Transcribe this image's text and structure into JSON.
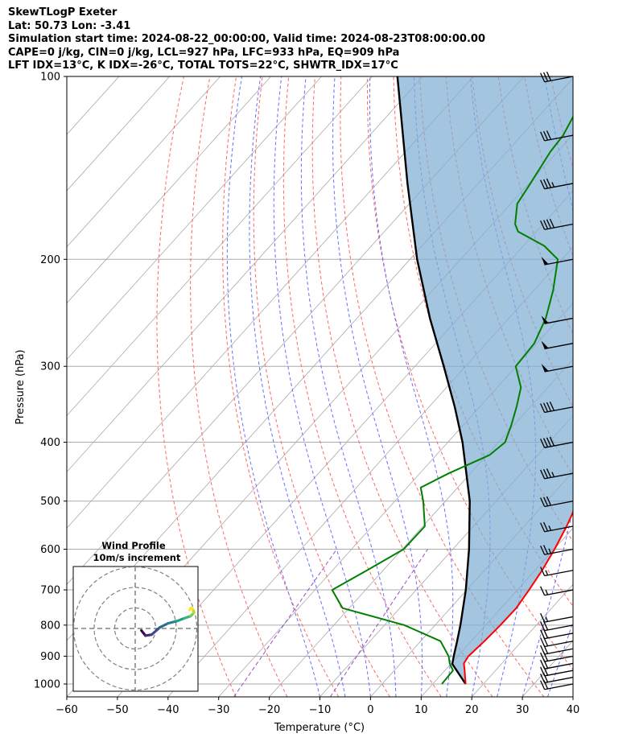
{
  "header": {
    "line1": "SkewTLogP Exeter",
    "line2": "Lat: 50.73   Lon: -3.41",
    "line3": "Simulation start time: 2024-08-22_00:00:00, Valid time: 2024-08-23T08:00:00.00",
    "line4": "CAPE=0 j/kg, CIN=0 j/kg, LCL=927 hPa, LFC=933 hPa, EQ=909 hPa",
    "line5": "LFT IDX=13°C, K IDX=-26°C, TOTAL TOTS=22°C, SHWTR_IDX=17°C"
  },
  "chart_data": {
    "type": "line",
    "xlabel": "Temperature (°C)",
    "ylabel": "Pressure (hPa)",
    "xlim": [
      -60,
      40
    ],
    "ylim": [
      1050,
      100
    ],
    "y_scale": "log",
    "x_ticks": [
      -60,
      -50,
      -40,
      -30,
      -20,
      -10,
      0,
      10,
      20,
      30,
      40
    ],
    "x_tick_labels": [
      "−60",
      "−50",
      "−40",
      "−30",
      "−20",
      "−10",
      "0",
      "10",
      "20",
      "30",
      "40"
    ],
    "y_ticks": [
      1000,
      900,
      800,
      700,
      600,
      500,
      400,
      300,
      200,
      100
    ],
    "y_tick_labels": [
      "1000",
      "900",
      "800",
      "700",
      "600",
      "500",
      "400",
      "300",
      "200",
      "100"
    ],
    "grid": true,
    "colors": {
      "temperature": "#ff0000",
      "dewpoint": "#008000",
      "parcel": "#000000",
      "cape_fill": "#7fafd3",
      "dry_adiabat": "#ff6666",
      "moist_adiabat": "#6670ff",
      "mixing_ratio": "#9a4fc4",
      "isotherm": "#aaaaaa"
    },
    "series": [
      {
        "role": "temperature",
        "points": [
          {
            "p": 1000,
            "t": 16.5
          },
          {
            "p": 975,
            "t": 15.2
          },
          {
            "p": 950,
            "t": 13.9
          },
          {
            "p": 925,
            "t": 12.5
          },
          {
            "p": 900,
            "t": 12.1
          },
          {
            "p": 850,
            "t": 12.6
          },
          {
            "p": 800,
            "t": 12.9
          },
          {
            "p": 750,
            "t": 13.0
          },
          {
            "p": 700,
            "t": 12.3
          },
          {
            "p": 650,
            "t": 11.4
          },
          {
            "p": 600,
            "t": 10.1
          },
          {
            "p": 550,
            "t": 8.4
          },
          {
            "p": 500,
            "t": 6.2
          },
          {
            "p": 450,
            "t": 3.4
          },
          {
            "p": 400,
            "t": 0.3
          },
          {
            "p": 350,
            "t": -4.9
          },
          {
            "p": 300,
            "t": -10.2
          },
          {
            "p": 250,
            "t": -17.1
          },
          {
            "p": 225,
            "t": -24.0
          },
          {
            "p": 200,
            "t": -26.8
          },
          {
            "p": 175,
            "t": -29.0
          },
          {
            "p": 150,
            "t": -31.1
          },
          {
            "p": 125,
            "t": -34.6
          },
          {
            "p": 100,
            "t": -37.6
          }
        ]
      },
      {
        "role": "dewpoint",
        "points": [
          {
            "p": 1000,
            "t": 11.8
          },
          {
            "p": 950,
            "t": 11.6
          },
          {
            "p": 925,
            "t": 9.7
          },
          {
            "p": 900,
            "t": 8.2
          },
          {
            "p": 850,
            "t": 3.9
          },
          {
            "p": 800,
            "t": -6.1
          },
          {
            "p": 750,
            "t": -21.3
          },
          {
            "p": 700,
            "t": -26.6
          },
          {
            "p": 650,
            "t": -23.2
          },
          {
            "p": 600,
            "t": -19.7
          },
          {
            "p": 550,
            "t": -19.6
          },
          {
            "p": 500,
            "t": -24.4
          },
          {
            "p": 475,
            "t": -27.3
          },
          {
            "p": 450,
            "t": -24.3
          },
          {
            "p": 420,
            "t": -19.5
          },
          {
            "p": 400,
            "t": -18.7
          },
          {
            "p": 375,
            "t": -20.5
          },
          {
            "p": 350,
            "t": -22.7
          },
          {
            "p": 325,
            "t": -25.3
          },
          {
            "p": 300,
            "t": -30.1
          },
          {
            "p": 275,
            "t": -30.5
          },
          {
            "p": 250,
            "t": -32.7
          },
          {
            "p": 225,
            "t": -36.2
          },
          {
            "p": 200,
            "t": -40.8
          },
          {
            "p": 190,
            "t": -45.9
          },
          {
            "p": 180,
            "t": -53.6
          },
          {
            "p": 175,
            "t": -55.5
          },
          {
            "p": 162,
            "t": -58.7
          },
          {
            "p": 150,
            "t": -59.7
          },
          {
            "p": 133,
            "t": -61.4
          },
          {
            "p": 125,
            "t": -61.8
          },
          {
            "p": 100,
            "t": -66.0
          }
        ]
      },
      {
        "role": "parcel",
        "points": [
          {
            "p": 1000,
            "t": 16.5
          },
          {
            "p": 927,
            "t": 10.3
          },
          {
            "p": 900,
            "t": 9.2
          },
          {
            "p": 850,
            "t": 7.2
          },
          {
            "p": 800,
            "t": 5.0
          },
          {
            "p": 700,
            "t": -0.2
          },
          {
            "p": 600,
            "t": -6.8
          },
          {
            "p": 500,
            "t": -15.2
          },
          {
            "p": 400,
            "t": -27.1
          },
          {
            "p": 350,
            "t": -34.9
          },
          {
            "p": 300,
            "t": -44.3
          },
          {
            "p": 250,
            "t": -55.6
          },
          {
            "p": 200,
            "t": -68.6
          },
          {
            "p": 150,
            "t": -84.0
          },
          {
            "p": 100,
            "t": -105.0
          }
        ]
      }
    ],
    "wind_barbs": [
      {
        "p": 1000,
        "speed": 20
      },
      {
        "p": 975,
        "speed": 20
      },
      {
        "p": 950,
        "speed": 20
      },
      {
        "p": 925,
        "speed": 20
      },
      {
        "p": 900,
        "speed": 20
      },
      {
        "p": 875,
        "speed": 20
      },
      {
        "p": 850,
        "speed": 20
      },
      {
        "p": 825,
        "speed": 20
      },
      {
        "p": 800,
        "speed": 20
      },
      {
        "p": 775,
        "speed": 15
      },
      {
        "p": 700,
        "speed": 15
      },
      {
        "p": 650,
        "speed": 15
      },
      {
        "p": 600,
        "speed": 25
      },
      {
        "p": 550,
        "speed": 25
      },
      {
        "p": 500,
        "speed": 30
      },
      {
        "p": 450,
        "speed": 35
      },
      {
        "p": 400,
        "speed": 40
      },
      {
        "p": 350,
        "speed": 40
      },
      {
        "p": 300,
        "speed": 50
      },
      {
        "p": 275,
        "speed": 50
      },
      {
        "p": 250,
        "speed": 50
      },
      {
        "p": 200,
        "speed": 50
      },
      {
        "p": 175,
        "speed": 40
      },
      {
        "p": 150,
        "speed": 35
      },
      {
        "p": 125,
        "speed": 30
      },
      {
        "p": 100,
        "speed": 30
      }
    ],
    "inset": {
      "title": "Wind Profile",
      "subtitle": "10m/s increment",
      "rings": [
        10,
        20,
        30
      ],
      "hodograph": [
        {
          "u": 3.0,
          "v": -1.0
        },
        {
          "u": 5.0,
          "v": -3.5
        },
        {
          "u": 8.0,
          "v": -3.0
        },
        {
          "u": 12.0,
          "v": 0.5
        },
        {
          "u": 16.0,
          "v": 2.5
        },
        {
          "u": 20.0,
          "v": 3.5
        },
        {
          "u": 24.0,
          "v": 5.0
        },
        {
          "u": 27.0,
          "v": 6.0
        },
        {
          "u": 28.5,
          "v": 7.5
        },
        {
          "u": 28.0,
          "v": 9.5
        },
        {
          "u": 27.0,
          "v": 10.0
        },
        {
          "u": 26.5,
          "v": 9.0
        }
      ]
    }
  }
}
